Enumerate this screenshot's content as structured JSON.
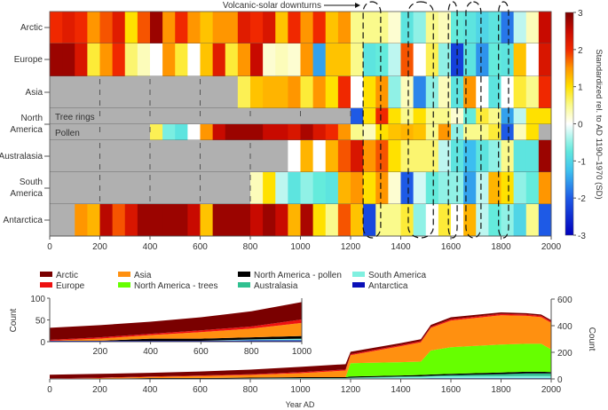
{
  "chart_data": [
    {
      "type": "heatmap",
      "annotation": "Volcanic-solar downturns",
      "colorbar_label": "Standardized rel. to AD 1190–1970 (SD)",
      "colorbar_ticks": [
        3,
        2,
        1,
        0,
        -1,
        -2,
        -3
      ],
      "clim": [
        -3,
        3
      ],
      "xlim": [
        0,
        2000
      ],
      "x_ticks": [
        0,
        200,
        400,
        600,
        800,
        1000,
        1200,
        1400,
        1600,
        1800,
        2000
      ],
      "bin_start_years": [
        0,
        50,
        100,
        150,
        200,
        250,
        300,
        350,
        400,
        450,
        500,
        550,
        600,
        650,
        700,
        750,
        800,
        850,
        900,
        950,
        1000,
        1050,
        1100,
        1150,
        1200,
        1250,
        1300,
        1350,
        1400,
        1450,
        1500,
        1550,
        1600,
        1650,
        1700,
        1750,
        1800,
        1850,
        1900,
        1950
      ],
      "bin_width_years": 50,
      "no_data_color": "#b0b0b0",
      "downturn_periods": [
        [
          1250,
          1320
        ],
        [
          1430,
          1530
        ],
        [
          1590,
          1625
        ],
        [
          1660,
          1720
        ],
        [
          1790,
          1830
        ]
      ],
      "row_labels": [
        "Arctic",
        "Europe",
        "Asia",
        "North America",
        "Australasia",
        "South America",
        "Antarctica"
      ],
      "sub_labels": [
        "Tree rings",
        "Pollen"
      ],
      "rows": [
        {
          "name": "Arctic",
          "values": [
            2,
            2.2,
            2,
            1.5,
            1.8,
            2.2,
            1,
            1.8,
            2.8,
            1.5,
            2,
            1.5,
            1.2,
            1.5,
            1.5,
            2.2,
            2,
            2.3,
            1.2,
            2,
            1.5,
            2,
            1.2,
            1.5,
            0.5,
            0.5,
            0.5,
            0.2,
            -0.8,
            -0.5,
            0.5,
            0.3,
            -0.7,
            -0.8,
            -1,
            -0.8,
            -1.8,
            -0.3,
            0.3,
            2.5
          ]
        },
        {
          "name": "Europe",
          "values": [
            2.8,
            2.8,
            2.3,
            0.8,
            1.5,
            2,
            0.6,
            0.3,
            0,
            1.5,
            0.8,
            0,
            1.2,
            2.2,
            0.8,
            1.5,
            2.5,
            0.2,
            0.3,
            0.2,
            1.5,
            -1.5,
            1.2,
            1.2,
            0.5,
            -0.8,
            -0.7,
            -0.3,
            1.8,
            0,
            0.7,
            -0.5,
            -2.3,
            -0.8,
            -1.6,
            -0.7,
            -0.8,
            1.2,
            0,
            2.3
          ]
        },
        {
          "name": "Asia",
          "values": [
            null,
            null,
            null,
            null,
            null,
            null,
            null,
            null,
            null,
            null,
            null,
            null,
            null,
            null,
            null,
            0.7,
            1.2,
            1.3,
            1.3,
            1.5,
            0.8,
            1.5,
            1,
            2,
            0,
            1,
            1.5,
            -0.5,
            0.3,
            -1.7,
            -0.5,
            0.3,
            -0.8,
            1.5,
            0,
            -0.8,
            0,
            0.8,
            0.5,
            2
          ]
        },
        {
          "name": "Tree rings",
          "values": [
            null,
            null,
            null,
            null,
            null,
            null,
            null,
            null,
            null,
            null,
            null,
            null,
            null,
            null,
            null,
            null,
            null,
            null,
            null,
            null,
            null,
            null,
            null,
            null,
            -2,
            1,
            2,
            1,
            0.5,
            1,
            0.5,
            0.5,
            0.2,
            -0.7,
            0.8,
            0.5,
            -1.5,
            -0.3,
            1,
            1
          ]
        },
        {
          "name": "Pollen",
          "values": [
            null,
            null,
            null,
            null,
            null,
            null,
            null,
            null,
            0.7,
            -0.6,
            -0.8,
            0,
            1.5,
            2.5,
            2.8,
            2.8,
            2.8,
            2.5,
            2.5,
            2.3,
            2.7,
            2.3,
            2,
            1.5,
            0.5,
            0.3,
            1,
            1.2,
            1.3,
            1.2,
            0.5,
            1.5,
            -0.5,
            0.5,
            0.5,
            0.8,
            -2,
            0.3,
            1,
            null
          ]
        },
        {
          "name": "Australasia",
          "values": [
            null,
            null,
            null,
            null,
            null,
            null,
            null,
            null,
            null,
            null,
            null,
            null,
            null,
            null,
            null,
            null,
            null,
            null,
            null,
            0,
            1.3,
            0,
            1.3,
            1.8,
            2.3,
            1.5,
            1.8,
            1,
            0.6,
            0.6,
            0.6,
            -0.3,
            -0.8,
            -1.3,
            -0.8,
            -0.5,
            0.5,
            -0.8,
            -0.8,
            2.8
          ]
        },
        {
          "name": "South America",
          "values": [
            null,
            null,
            null,
            null,
            null,
            null,
            null,
            null,
            null,
            null,
            null,
            null,
            null,
            null,
            null,
            null,
            0.3,
            1,
            -0.3,
            -0.8,
            -0.5,
            -0.7,
            -0.8,
            1.3,
            1.5,
            1,
            1.5,
            0.2,
            -2,
            -0.2,
            -0.7,
            -0.5,
            -0.5,
            -1.5,
            -0.3,
            1.3,
            1,
            -0.5,
            -0.7,
            1.5
          ]
        },
        {
          "name": "Antarctica",
          "values": [
            null,
            null,
            1.5,
            1.3,
            2.6,
            1.8,
            2.3,
            2.8,
            2.8,
            2.8,
            2.8,
            2.5,
            1.2,
            2.8,
            2.8,
            2.8,
            2.5,
            2.8,
            2.5,
            1.3,
            2.7,
            1,
            0.5,
            1.8,
            1.2,
            -2.2,
            0.5,
            0.5,
            0.8,
            -0.5,
            0,
            0.8,
            0,
            1.3,
            -0.3,
            -0.7,
            -0.5,
            -1,
            0.5,
            -2
          ]
        }
      ]
    },
    {
      "type": "area",
      "stacked": true,
      "xlabel": "Year AD",
      "ylabel_left": "Count",
      "ylabel_right": "Count",
      "xlim": [
        0,
        2000
      ],
      "ylim": [
        0,
        600
      ],
      "x_ticks": [
        0,
        200,
        400,
        600,
        800,
        1000,
        1200,
        1400,
        1600,
        1800,
        2000
      ],
      "y_ticks": [
        0,
        200,
        400,
        600
      ],
      "inset": {
        "xlim": [
          0,
          1000
        ],
        "ylim": [
          0,
          100
        ],
        "x_ticks": [
          200,
          400,
          600,
          800,
          1000
        ],
        "y_ticks": [
          0,
          50,
          100
        ],
        "ylabel": "Count"
      },
      "x": [
        0,
        200,
        400,
        600,
        800,
        1000,
        1180,
        1200,
        1400,
        1480,
        1520,
        1600,
        1800,
        1900,
        1960,
        2000
      ],
      "series": [
        {
          "name": "Antarctica",
          "color": "#0a10b8",
          "values": [
            2,
            2,
            2,
            2,
            3,
            3,
            3,
            4,
            5,
            5,
            6,
            6,
            6,
            6,
            6,
            6
          ]
        },
        {
          "name": "South America",
          "color": "#80f0e0",
          "values": [
            0,
            0,
            0,
            0,
            2,
            3,
            3,
            3,
            8,
            10,
            12,
            14,
            15,
            16,
            16,
            16
          ]
        },
        {
          "name": "Australasia",
          "color": "#30c090",
          "values": [
            0,
            0,
            0,
            0,
            0,
            1,
            1,
            3,
            5,
            5,
            5,
            8,
            15,
            20,
            20,
            20
          ]
        },
        {
          "name": "North America - pollen",
          "color": "#000000",
          "values": [
            0,
            0,
            5,
            5,
            5,
            6,
            6,
            8,
            8,
            10,
            10,
            10,
            12,
            12,
            12,
            10
          ]
        },
        {
          "name": "North America - trees",
          "color": "#66ff00",
          "values": [
            0,
            0,
            0,
            0,
            0,
            0,
            0,
            100,
            100,
            100,
            180,
            200,
            210,
            210,
            210,
            170
          ]
        },
        {
          "name": "Asia",
          "color": "#ff9010",
          "values": [
            0,
            5,
            8,
            15,
            20,
            30,
            50,
            60,
            120,
            145,
            170,
            200,
            220,
            210,
            200,
            200
          ]
        },
        {
          "name": "Europe",
          "color": "#ee1111",
          "values": [
            2,
            3,
            3,
            4,
            5,
            8,
            8,
            8,
            8,
            8,
            8,
            10,
            10,
            10,
            10,
            10
          ]
        },
        {
          "name": "Arctic",
          "color": "#7a0000",
          "values": [
            28,
            28,
            28,
            30,
            35,
            40,
            40,
            18,
            15,
            15,
            15,
            15,
            12,
            10,
            10,
            10
          ]
        }
      ],
      "legend_order": [
        "Arctic",
        "Europe",
        "Asia",
        "North America - trees",
        "North America - pollen",
        "Australasia",
        "South America",
        "Antarctica"
      ],
      "legend_placement": "top"
    }
  ]
}
